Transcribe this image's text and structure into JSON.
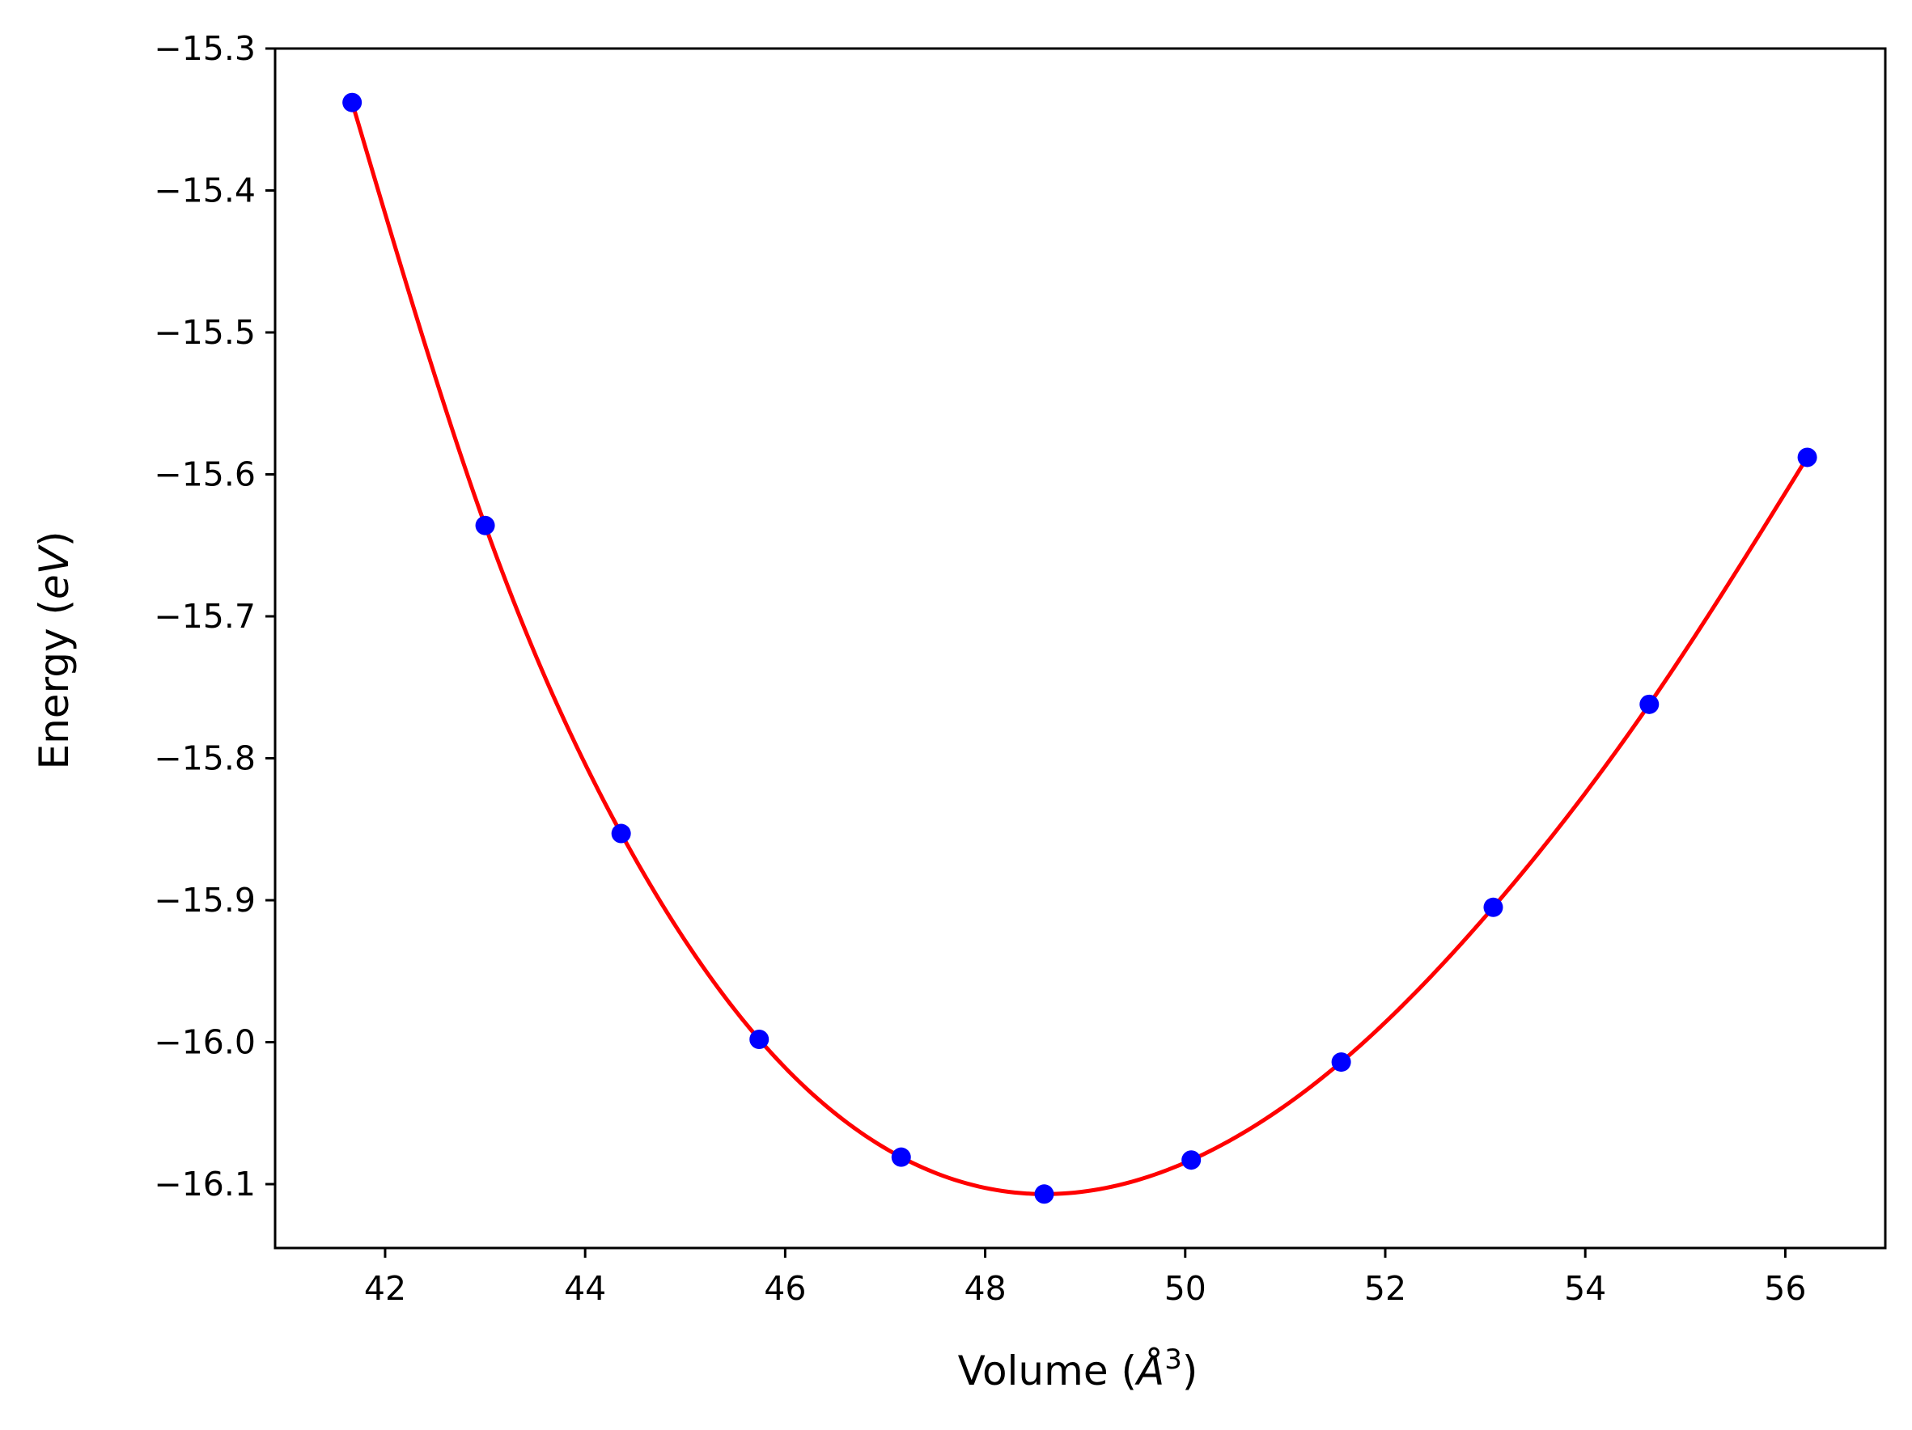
{
  "chart_data": {
    "type": "scatter",
    "title": "",
    "xlabel": {
      "prefix": "Volume (",
      "symbol": "Å",
      "sup": "3",
      "suffix": ")"
    },
    "ylabel": {
      "prefix": "Energy (",
      "italic": "eV",
      "suffix": ")"
    },
    "xlim": [
      40.9,
      57.0
    ],
    "ylim": [
      -16.145,
      -15.3
    ],
    "xticks": [
      42,
      44,
      46,
      48,
      50,
      52,
      54,
      56
    ],
    "yticks": [
      -15.3,
      -15.4,
      -15.5,
      -15.6,
      -15.7,
      -15.8,
      -15.9,
      -16.0,
      -16.1
    ],
    "xtick_labels": [
      "42",
      "44",
      "46",
      "48",
      "50",
      "52",
      "54",
      "56"
    ],
    "ytick_labels": [
      "−15.3",
      "−15.4",
      "−15.5",
      "−15.6",
      "−15.7",
      "−15.8",
      "−15.9",
      "−16.0",
      "−16.1"
    ],
    "grid": false,
    "series": [
      {
        "kind": "points",
        "color": "#0000ff",
        "x": [
          41.67,
          43.0,
          44.36,
          45.74,
          47.16,
          48.59,
          50.06,
          51.56,
          53.08,
          54.64,
          56.22
        ],
        "y": [
          -15.338,
          -15.636,
          -15.853,
          -15.998,
          -16.081,
          -16.107,
          -16.083,
          -16.014,
          -15.905,
          -15.762,
          -15.588
        ]
      },
      {
        "kind": "fit-curve",
        "color": "#ff0000",
        "x": [
          41.67,
          43.0,
          44.36,
          45.74,
          47.16,
          48.59,
          50.06,
          51.56,
          53.08,
          54.64,
          56.22
        ],
        "y": [
          -15.338,
          -15.636,
          -15.853,
          -15.998,
          -16.081,
          -16.107,
          -16.083,
          -16.014,
          -15.905,
          -15.762,
          -15.588
        ]
      }
    ]
  }
}
